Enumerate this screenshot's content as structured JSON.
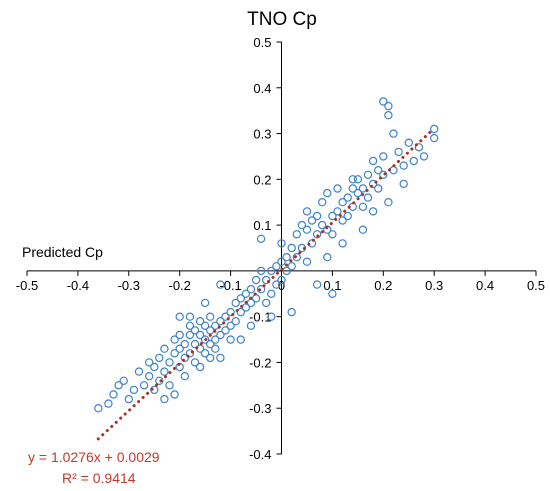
{
  "chart_data": {
    "type": "scatter",
    "title": "TNO Cp",
    "xlabel": "Predicted Cp",
    "ylabel": "",
    "xlim": [
      -0.5,
      0.5
    ],
    "ylim": [
      -0.4,
      0.5
    ],
    "x_ticks": [
      "-0.5",
      "-0.4",
      "-0.3",
      "-0.2",
      "-0.1",
      "0",
      "0.1",
      "0.2",
      "0.3",
      "0.4",
      "0.5"
    ],
    "y_ticks": [
      "0.5",
      "0.4",
      "0.3",
      "0.2",
      "0.1",
      "0",
      "-0.1",
      "-0.2",
      "-0.3",
      "-0.4"
    ],
    "grid": false,
    "legend": "none",
    "colors": {
      "points": "#3f82c6",
      "trendline": "#a93226",
      "equation": "#c0392b"
    },
    "trendline": {
      "style": "dotted",
      "slope": 1.0276,
      "intercept": 0.0029,
      "x_range": [
        -0.36,
        0.3
      ]
    },
    "equation_text": "y = 1.0276x + 0.0029",
    "r2_text": "R² = 0.9414",
    "series": [
      {
        "marker": "open-circle",
        "points": [
          [
            -0.36,
            -0.3
          ],
          [
            -0.34,
            -0.29
          ],
          [
            -0.33,
            -0.27
          ],
          [
            -0.32,
            -0.25
          ],
          [
            -0.31,
            -0.24
          ],
          [
            -0.3,
            -0.28
          ],
          [
            -0.29,
            -0.26
          ],
          [
            -0.28,
            -0.22
          ],
          [
            -0.27,
            -0.25
          ],
          [
            -0.26,
            -0.23
          ],
          [
            -0.25,
            -0.21
          ],
          [
            -0.25,
            -0.26
          ],
          [
            -0.24,
            -0.19
          ],
          [
            -0.24,
            -0.24
          ],
          [
            -0.23,
            -0.22
          ],
          [
            -0.23,
            -0.17
          ],
          [
            -0.22,
            -0.2
          ],
          [
            -0.22,
            -0.25
          ],
          [
            -0.21,
            -0.18
          ],
          [
            -0.21,
            -0.15
          ],
          [
            -0.2,
            -0.21
          ],
          [
            -0.2,
            -0.17
          ],
          [
            -0.2,
            -0.14
          ],
          [
            -0.19,
            -0.19
          ],
          [
            -0.19,
            -0.16
          ],
          [
            -0.19,
            -0.23
          ],
          [
            -0.18,
            -0.18
          ],
          [
            -0.18,
            -0.14
          ],
          [
            -0.18,
            -0.12
          ],
          [
            -0.17,
            -0.2
          ],
          [
            -0.17,
            -0.16
          ],
          [
            -0.17,
            -0.13
          ],
          [
            -0.16,
            -0.17
          ],
          [
            -0.16,
            -0.14
          ],
          [
            -0.16,
            -0.11
          ],
          [
            -0.15,
            -0.18
          ],
          [
            -0.15,
            -0.15
          ],
          [
            -0.15,
            -0.12
          ],
          [
            -0.14,
            -0.16
          ],
          [
            -0.14,
            -0.13
          ],
          [
            -0.14,
            -0.1
          ],
          [
            -0.13,
            -0.15
          ],
          [
            -0.13,
            -0.12
          ],
          [
            -0.13,
            -0.17
          ],
          [
            -0.12,
            -0.14
          ],
          [
            -0.12,
            -0.11
          ],
          [
            -0.12,
            -0.19
          ],
          [
            -0.11,
            -0.13
          ],
          [
            -0.11,
            -0.1
          ],
          [
            -0.1,
            -0.12
          ],
          [
            -0.1,
            -0.09
          ],
          [
            -0.09,
            -0.11
          ],
          [
            -0.09,
            -0.07
          ],
          [
            -0.08,
            -0.09
          ],
          [
            -0.08,
            -0.06
          ],
          [
            -0.07,
            -0.08
          ],
          [
            -0.07,
            -0.05
          ],
          [
            -0.06,
            -0.07
          ],
          [
            -0.06,
            -0.04
          ],
          [
            -0.05,
            -0.06
          ],
          [
            -0.05,
            -0.02
          ],
          [
            -0.04,
            -0.04
          ],
          [
            -0.04,
            0.0
          ],
          [
            -0.03,
            -0.02
          ],
          [
            -0.03,
            -0.07
          ],
          [
            -0.02,
            0.0
          ],
          [
            -0.02,
            -0.05
          ],
          [
            -0.01,
            0.01
          ],
          [
            -0.01,
            -0.03
          ],
          [
            0.0,
            0.02
          ],
          [
            0.0,
            -0.02
          ],
          [
            0.01,
            0.03
          ],
          [
            0.01,
            0.0
          ],
          [
            0.02,
            0.05
          ],
          [
            0.02,
            0.01
          ],
          [
            0.03,
            0.08
          ],
          [
            0.03,
            0.03
          ],
          [
            0.04,
            0.1
          ],
          [
            0.04,
            0.05
          ],
          [
            0.05,
            0.09
          ],
          [
            0.05,
            0.02
          ],
          [
            0.06,
            0.11
          ],
          [
            0.06,
            0.06
          ],
          [
            0.07,
            0.08
          ],
          [
            0.07,
            0.12
          ],
          [
            0.08,
            0.1
          ],
          [
            0.08,
            0.15
          ],
          [
            0.09,
            0.09
          ],
          [
            0.09,
            0.17
          ],
          [
            0.1,
            0.12
          ],
          [
            0.1,
            0.08
          ],
          [
            0.11,
            0.13
          ],
          [
            0.11,
            0.18
          ],
          [
            0.12,
            0.11
          ],
          [
            0.12,
            0.15
          ],
          [
            0.13,
            0.16
          ],
          [
            0.13,
            0.12
          ],
          [
            0.14,
            0.18
          ],
          [
            0.14,
            0.14
          ],
          [
            0.15,
            0.17
          ],
          [
            0.15,
            0.2
          ],
          [
            0.16,
            0.14
          ],
          [
            0.16,
            0.18
          ],
          [
            0.17,
            0.16
          ],
          [
            0.17,
            0.21
          ],
          [
            0.18,
            0.19
          ],
          [
            0.18,
            0.24
          ],
          [
            0.19,
            0.22
          ],
          [
            0.19,
            0.18
          ],
          [
            0.2,
            0.25
          ],
          [
            0.2,
            0.21
          ],
          [
            0.2,
            0.37
          ],
          [
            0.21,
            0.36
          ],
          [
            0.21,
            0.34
          ],
          [
            0.22,
            0.3
          ],
          [
            0.22,
            0.22
          ],
          [
            0.23,
            0.26
          ],
          [
            0.24,
            0.23
          ],
          [
            0.25,
            0.28
          ],
          [
            0.27,
            0.27
          ],
          [
            0.28,
            0.25
          ],
          [
            0.3,
            0.31
          ],
          [
            0.3,
            0.29
          ],
          [
            -0.23,
            -0.28
          ],
          [
            -0.21,
            -0.27
          ],
          [
            -0.26,
            -0.2
          ],
          [
            -0.16,
            -0.21
          ],
          [
            -0.1,
            -0.15
          ],
          [
            -0.06,
            -0.12
          ],
          [
            0.02,
            -0.09
          ],
          [
            0.05,
            0.13
          ],
          [
            0.09,
            0.03
          ],
          [
            0.12,
            0.06
          ],
          [
            -0.12,
            -0.03
          ],
          [
            -0.15,
            -0.07
          ],
          [
            -0.18,
            -0.1
          ],
          [
            -0.2,
            -0.1
          ],
          [
            -0.14,
            -0.19
          ],
          [
            -0.08,
            -0.15
          ],
          [
            -0.04,
            0.07
          ],
          [
            0.0,
            0.06
          ],
          [
            -0.02,
            -0.1
          ],
          [
            0.07,
            -0.03
          ],
          [
            0.1,
            -0.05
          ],
          [
            0.16,
            0.09
          ],
          [
            0.18,
            0.13
          ],
          [
            0.26,
            0.24
          ],
          [
            0.14,
            0.2
          ],
          [
            0.21,
            0.15
          ],
          [
            0.24,
            0.19
          ]
        ]
      }
    ]
  }
}
